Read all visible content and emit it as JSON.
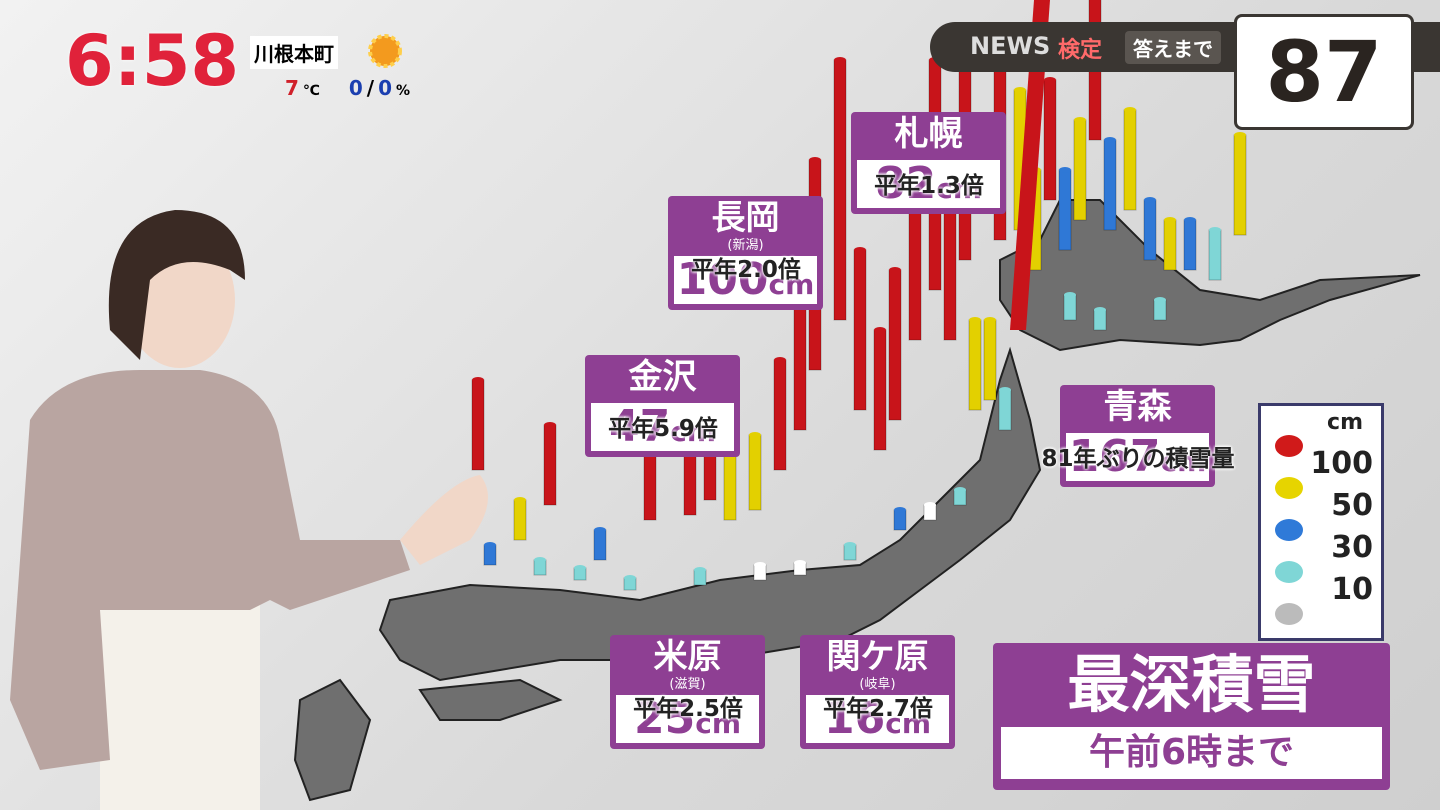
{
  "header": {
    "time": "6:58",
    "location": "川根本町",
    "temperature": "7",
    "temp_unit": "℃",
    "precip_am": "0",
    "precip_sep": "/",
    "precip_pm": "0",
    "precip_unit": "%"
  },
  "quiz": {
    "brand": "NEWS",
    "brand_suffix": "検定",
    "countdown_label": "答えまで",
    "countdown": "87"
  },
  "stations": [
    {
      "name": "札幌",
      "depth": "82",
      "unit": "cm",
      "note": "平年1.3倍"
    },
    {
      "name": "長岡",
      "pref": "(新潟)",
      "depth": "100",
      "unit": "cm",
      "note": "平年2.0倍"
    },
    {
      "name": "金沢",
      "depth": "47",
      "unit": "cm",
      "note": "平年5.9倍"
    },
    {
      "name": "青森",
      "depth": "167",
      "unit": "cm",
      "note": "81年ぶりの積雪量"
    },
    {
      "name": "米原",
      "pref": "(滋賀)",
      "depth": "25",
      "unit": "cm",
      "note": "平年2.5倍"
    },
    {
      "name": "関ケ原",
      "pref": "(岐阜)",
      "depth": "16",
      "unit": "cm",
      "note": "平年2.7倍"
    }
  ],
  "legend": {
    "unit": "cm",
    "levels": [
      "100",
      "50",
      "30",
      "10"
    ]
  },
  "title": {
    "main": "最深積雪",
    "sub": "午前6時まで"
  }
}
